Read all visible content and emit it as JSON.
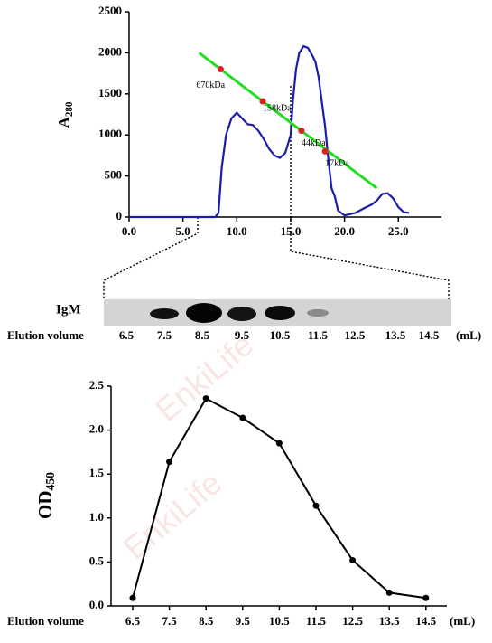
{
  "watermark": "EnkiLife",
  "gel": {
    "label": "IgM",
    "x_label": "Elution volume",
    "lanes": [
      "6.5",
      "7.5",
      "8.5",
      "9.5",
      "10.5",
      "11.5",
      "12.5",
      "13.5",
      "14.5"
    ],
    "unit": "(mL)"
  },
  "chart_data": [
    {
      "type": "line",
      "y_label": "A",
      "y_label_sub": "280",
      "xlim": [
        0,
        29
      ],
      "ylim": [
        0,
        2500
      ],
      "xticks": [
        {
          "value": 0,
          "label": "0.0"
        },
        {
          "value": 5,
          "label": "5.0"
        },
        {
          "value": 10,
          "label": "10.0"
        },
        {
          "value": 15,
          "label": "15.0"
        },
        {
          "value": 20,
          "label": "20.0"
        },
        {
          "value": 25,
          "label": "25.0"
        }
      ],
      "yticks": [
        0,
        500,
        1000,
        1500,
        2000,
        2500
      ],
      "series": [
        {
          "color": "#1c1caa",
          "x": [
            0,
            8,
            8.3,
            8.6,
            9,
            9.5,
            10,
            10.5,
            11,
            11.5,
            12,
            12.5,
            13,
            13.5,
            14,
            14.5,
            15,
            15.2,
            15.5,
            15.8,
            16.2,
            16.6,
            17,
            17.3,
            17.6,
            17.9,
            18.2,
            18.5,
            18.8,
            19.1,
            19.4,
            20,
            21,
            22,
            22.5,
            23,
            23.5,
            24,
            24.5,
            25,
            25.5,
            26
          ],
          "values": [
            0,
            0,
            50,
            600,
            1000,
            1200,
            1270,
            1200,
            1130,
            1120,
            1050,
            950,
            830,
            750,
            720,
            780,
            1000,
            1400,
            1800,
            2000,
            2080,
            2060,
            1970,
            1890,
            1700,
            1400,
            1100,
            700,
            350,
            250,
            80,
            20,
            50,
            120,
            150,
            200,
            280,
            290,
            230,
            120,
            60,
            50
          ]
        },
        {
          "color": "#22dd22",
          "x": [
            6.5,
            23
          ],
          "values": [
            2000,
            350
          ]
        }
      ],
      "points": {
        "color": "#e02020",
        "x": [
          8.5,
          12.4,
          16,
          18.2
        ],
        "values": [
          1800,
          1410,
          1050,
          800
        ],
        "labels": [
          "670kDa",
          "158kDa",
          "44kDa",
          "17kDa"
        ]
      }
    },
    {
      "type": "line",
      "y_label": "OD",
      "y_label_sub": "450",
      "x_label": "Elution volume",
      "unit": "(mL)",
      "categories": [
        "6.5",
        "7.5",
        "8.5",
        "9.5",
        "10.5",
        "11.5",
        "12.5",
        "13.5",
        "14.5"
      ],
      "values": [
        0.09,
        1.64,
        2.36,
        2.14,
        1.85,
        1.14,
        0.52,
        0.15,
        0.09
      ],
      "color": "#000000",
      "ylim": [
        0,
        2.5
      ],
      "yticks": [
        {
          "value": 0,
          "label": "0.0"
        },
        {
          "value": 0.5,
          "label": "0.5"
        },
        {
          "value": 1,
          "label": "1.0"
        },
        {
          "value": 1.5,
          "label": "1.5"
        },
        {
          "value": 2,
          "label": "2.0"
        },
        {
          "value": 2.5,
          "label": "2.5"
        }
      ]
    }
  ]
}
